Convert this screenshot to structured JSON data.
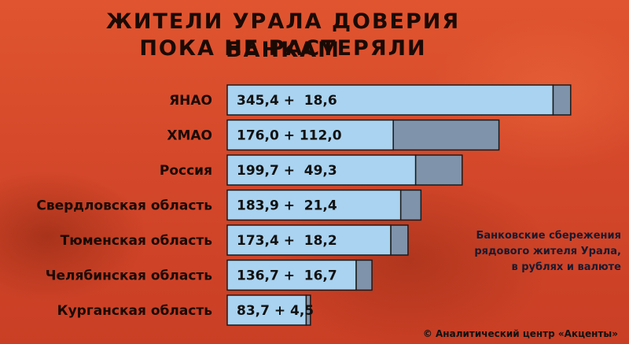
{
  "title": {
    "line1": "ЖИТЕЛИ УРАЛА ДОВЕРИЯ БАНКАМ",
    "line2": "ПОКА НЕ РАСТЕРЯЛИ"
  },
  "legend": {
    "line1": "Банковские сбережения",
    "line2": "рядового жителя Урала,",
    "line3": "в рублях и валюте"
  },
  "copyright": "© Аналитический центр «Акценты»",
  "colors": {
    "background": "#d94a2a",
    "rubles": "#a9d3f0",
    "currency": "#7f93aa",
    "text": "#1a0a05"
  },
  "chart_data": {
    "type": "bar",
    "orientation": "horizontal",
    "stacked": true,
    "categories": [
      "ЯНАО",
      "ХМАО",
      "Россия",
      "Свердловская область",
      "Тюменская область",
      "Челябинская область",
      "Курганская область"
    ],
    "series": [
      {
        "values": [
          345.4,
          176.0,
          199.7,
          183.9,
          173.4,
          136.7,
          83.7
        ]
      },
      {
        "values": [
          18.6,
          112.0,
          49.3,
          21.4,
          18.2,
          16.7,
          4.5
        ]
      }
    ],
    "value_labels": [
      "345,4 +  18,6",
      "176,0 + 112,0",
      "199,7 +  49,3",
      "183,9 +  21,4",
      "173,4 +  18,2",
      "136,7 +  16,7",
      "83,7 + 4,5"
    ]
  }
}
